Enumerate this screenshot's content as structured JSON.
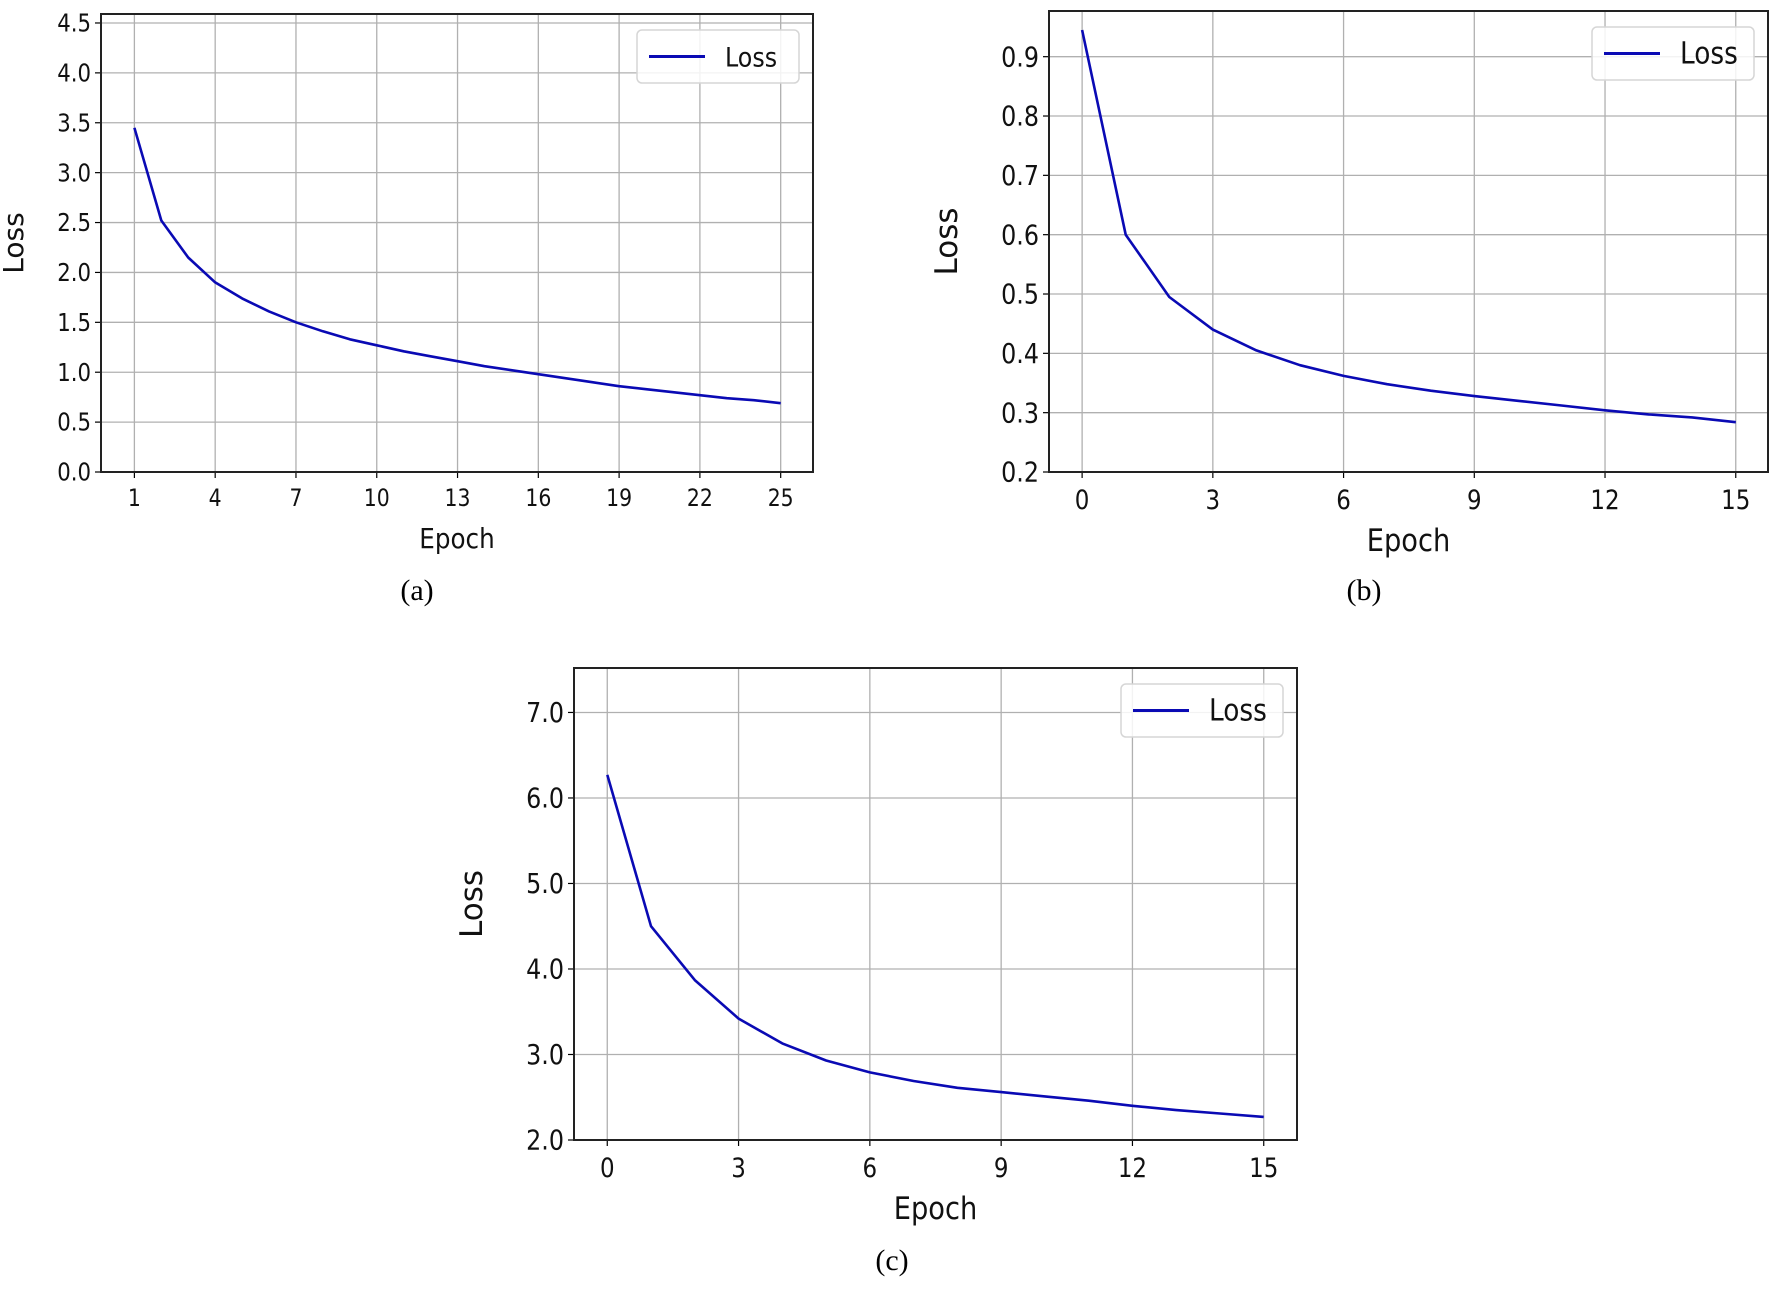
{
  "chart_data": [
    {
      "id": "a",
      "type": "line",
      "caption": "(a)",
      "xlabel": "Epoch",
      "ylabel": "Loss",
      "xlim": [
        -0.24,
        26.2
      ],
      "ylim": [
        0,
        4.59
      ],
      "xticks": [
        1,
        4,
        7,
        10,
        13,
        16,
        19,
        22,
        25
      ],
      "yticks": [
        0.0,
        0.5,
        1.0,
        1.5,
        2.0,
        2.5,
        3.0,
        3.5,
        4.0,
        4.5
      ],
      "ytick_decimals": 1,
      "grid": true,
      "legend": {
        "position": "top-right",
        "entries": [
          "Loss"
        ]
      },
      "series": [
        {
          "name": "Loss",
          "color": "#0a0ab4",
          "x": [
            1,
            2,
            3,
            4,
            5,
            6,
            7,
            8,
            9,
            10,
            11,
            12,
            13,
            14,
            15,
            16,
            17,
            18,
            19,
            20,
            21,
            22,
            23,
            24,
            25
          ],
          "y": [
            3.45,
            2.52,
            2.15,
            1.9,
            1.74,
            1.61,
            1.5,
            1.41,
            1.33,
            1.27,
            1.21,
            1.16,
            1.11,
            1.06,
            1.02,
            0.98,
            0.94,
            0.9,
            0.86,
            0.83,
            0.8,
            0.77,
            0.74,
            0.72,
            0.69
          ]
        }
      ]
    },
    {
      "id": "b",
      "type": "line",
      "caption": "(b)",
      "xlabel": "Epoch",
      "ylabel": "Loss",
      "xlim": [
        -0.76,
        15.74
      ],
      "ylim": [
        0.2,
        0.977
      ],
      "xticks": [
        0,
        3,
        6,
        9,
        12,
        15
      ],
      "yticks": [
        0.2,
        0.3,
        0.4,
        0.5,
        0.6,
        0.7,
        0.8,
        0.9
      ],
      "ytick_decimals": 1,
      "grid": true,
      "legend": {
        "position": "top-right",
        "entries": [
          "Loss"
        ]
      },
      "series": [
        {
          "name": "Loss",
          "color": "#0a0ab4",
          "x": [
            0,
            1,
            2,
            3,
            4,
            5,
            6,
            7,
            8,
            9,
            10,
            11,
            12,
            13,
            14,
            15
          ],
          "y": [
            0.945,
            0.6,
            0.495,
            0.44,
            0.405,
            0.38,
            0.362,
            0.348,
            0.337,
            0.328,
            0.32,
            0.312,
            0.304,
            0.297,
            0.292,
            0.284
          ]
        }
      ]
    },
    {
      "id": "c",
      "type": "line",
      "caption": "(c)",
      "xlabel": "Epoch",
      "ylabel": "Loss",
      "xlim": [
        -0.76,
        15.76
      ],
      "ylim": [
        2.0,
        7.52
      ],
      "xticks": [
        0,
        3,
        6,
        9,
        12,
        15
      ],
      "yticks": [
        2.0,
        3.0,
        4.0,
        5.0,
        6.0,
        7.0
      ],
      "ytick_decimals": 1,
      "grid": true,
      "legend": {
        "position": "top-right",
        "entries": [
          "Loss"
        ]
      },
      "series": [
        {
          "name": "Loss",
          "color": "#0a0ab4",
          "x": [
            0,
            1,
            2,
            3,
            4,
            5,
            6,
            7,
            8,
            9,
            10,
            11,
            12,
            13,
            14,
            15
          ],
          "y": [
            6.27,
            4.5,
            3.87,
            3.42,
            3.13,
            2.93,
            2.79,
            2.69,
            2.61,
            2.56,
            2.51,
            2.46,
            2.4,
            2.35,
            2.31,
            2.27
          ]
        }
      ]
    }
  ]
}
